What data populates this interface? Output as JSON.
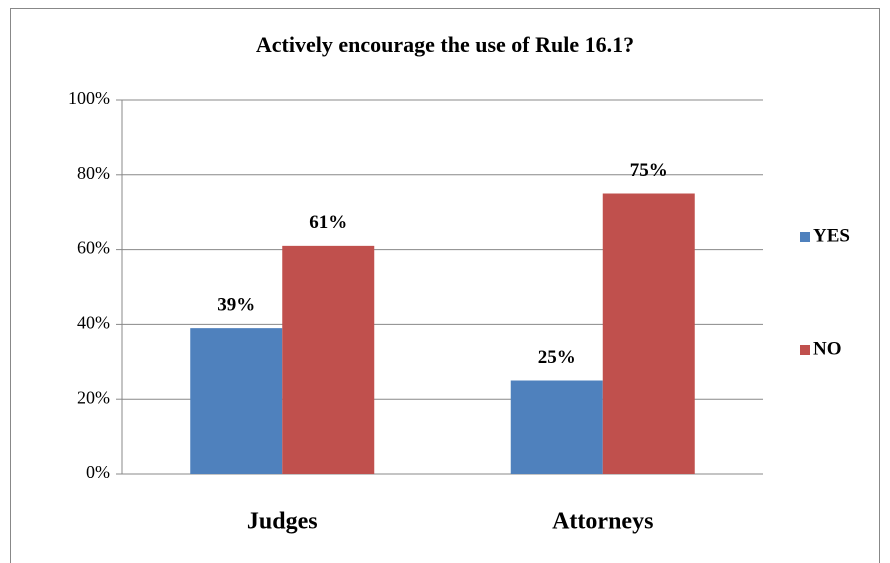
{
  "chart_data": {
    "type": "bar",
    "title": "Actively encourage the use of Rule 16.1?",
    "categories": [
      "Judges",
      "Attorneys"
    ],
    "series": [
      {
        "name": "YES",
        "color": "#4f81bd",
        "values": [
          39,
          25
        ],
        "value_labels": [
          "39%",
          "25%"
        ]
      },
      {
        "name": "NO",
        "color": "#c0504d",
        "values": [
          61,
          75
        ],
        "value_labels": [
          "61%",
          "75%"
        ]
      }
    ],
    "ylim": [
      0,
      100
    ],
    "yticks": [
      {
        "value": 0,
        "label": "0%"
      },
      {
        "value": 20,
        "label": "20%"
      },
      {
        "value": 40,
        "label": "40%"
      },
      {
        "value": 60,
        "label": "60%"
      },
      {
        "value": 80,
        "label": "80%"
      },
      {
        "value": 100,
        "label": "100%"
      }
    ],
    "grid": true,
    "legend": "right"
  }
}
